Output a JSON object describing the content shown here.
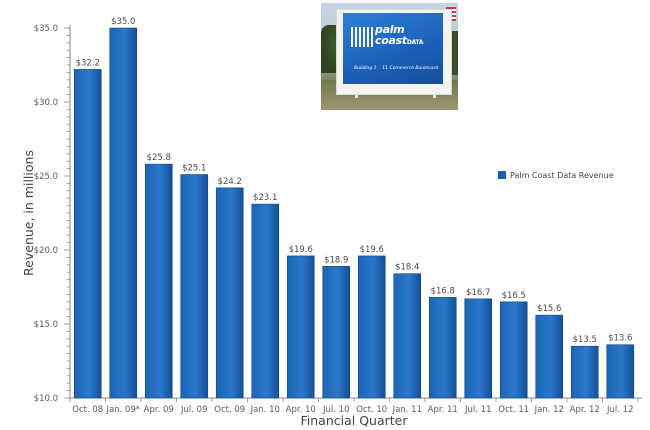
{
  "chart_data": {
    "type": "bar",
    "xlabel": "Financial Quarter",
    "ylabel": "Revenue, in millions",
    "ylim": [
      10,
      35
    ],
    "y_ticks": [
      "$10.0",
      "$15.0",
      "$20.0",
      "$25.0",
      "$30.0",
      "$35.0"
    ],
    "y_tick_values": [
      10,
      15,
      20,
      25,
      30,
      35
    ],
    "categories": [
      "Oct. 08",
      "Jan. 09*",
      "Apr. 09",
      "Jul. 09",
      "Oct. 09",
      "Jan. 10",
      "Apr. 10",
      "Jul. 10",
      "Oct. 10",
      "Jan. 11",
      "Apr. 11",
      "Jul. 11",
      "Oct. 11",
      "Jan. 12",
      "Apr. 12",
      "Jul. 12"
    ],
    "series": [
      {
        "name": "Palm Coast Data Revenue",
        "values": [
          32.2,
          35.0,
          25.8,
          25.1,
          24.2,
          23.1,
          19.6,
          18.9,
          19.6,
          18.4,
          16.8,
          16.7,
          16.5,
          15.6,
          13.5,
          13.6
        ],
        "data_labels": [
          "$32.2",
          "$35.0",
          "$25.8",
          "$25.1",
          "$24.2",
          "$23.1",
          "$19.6",
          "$18.9",
          "$19.6",
          "$18.4",
          "$16.8",
          "$16.7",
          "$16.5",
          "$15.6",
          "$13.5",
          "$13.6"
        ],
        "color": "#1a5fae"
      }
    ],
    "grid": false,
    "legend_position": "right"
  },
  "photo": {
    "brand_line1": "palm",
    "brand_line2": "coast",
    "brand_suffix": "DATA",
    "sign_building": "Building 1",
    "sign_address": "11 Commerce Boulevard"
  }
}
